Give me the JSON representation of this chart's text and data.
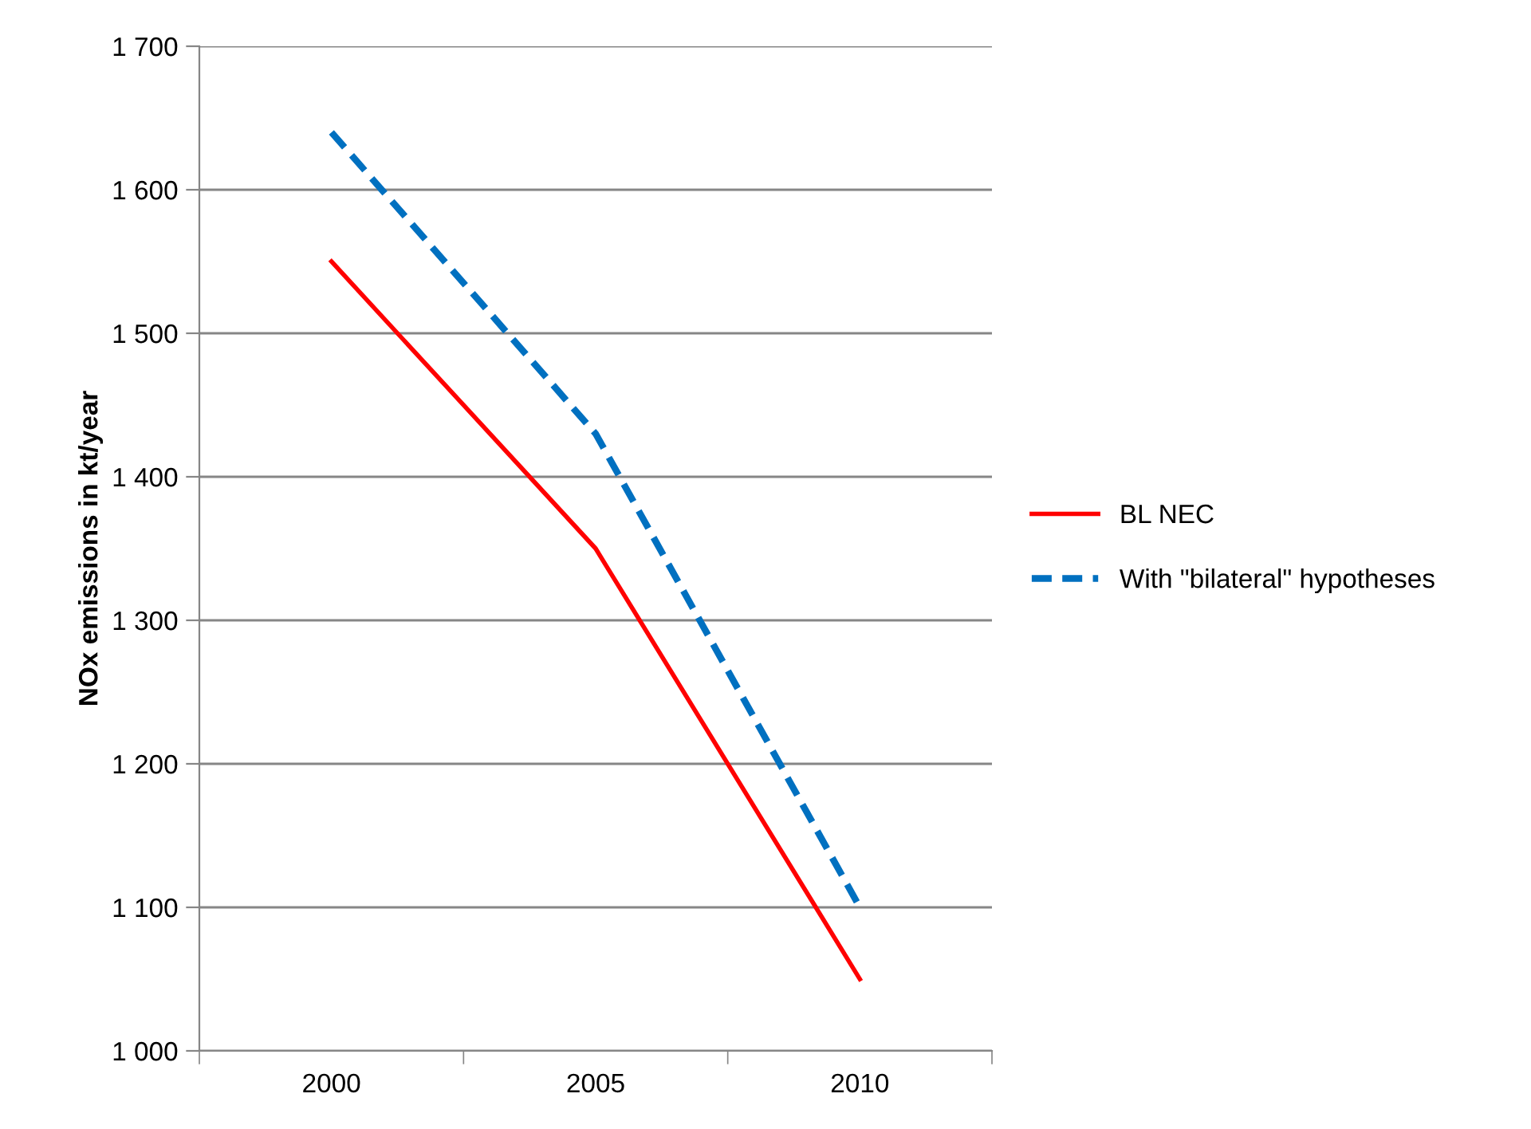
{
  "chart_data": {
    "type": "line",
    "ylabel": "NOx emissions in kt/year",
    "categories": [
      "2000",
      "2005",
      "2010"
    ],
    "series": [
      {
        "name": "BL NEC",
        "color": "#ff0000",
        "values": [
          1550,
          1350,
          1050
        ],
        "line_style": "solid"
      },
      {
        "name": "With \"bilateral\" hypotheses",
        "color": "#0070c0",
        "values": [
          1640,
          1430,
          1100
        ],
        "line_style": "dashed"
      }
    ],
    "ylim": [
      1000,
      1700
    ],
    "yticks": [
      {
        "value": 1000,
        "label": "1 000"
      },
      {
        "value": 1100,
        "label": "1 100"
      },
      {
        "value": 1200,
        "label": "1 200"
      },
      {
        "value": 1300,
        "label": "1 300"
      },
      {
        "value": 1400,
        "label": "1 400"
      },
      {
        "value": 1500,
        "label": "1 500"
      },
      {
        "value": 1600,
        "label": "1 600"
      },
      {
        "value": 1700,
        "label": "1 700"
      }
    ],
    "grid": "y",
    "legend": "right",
    "marker": "none"
  }
}
